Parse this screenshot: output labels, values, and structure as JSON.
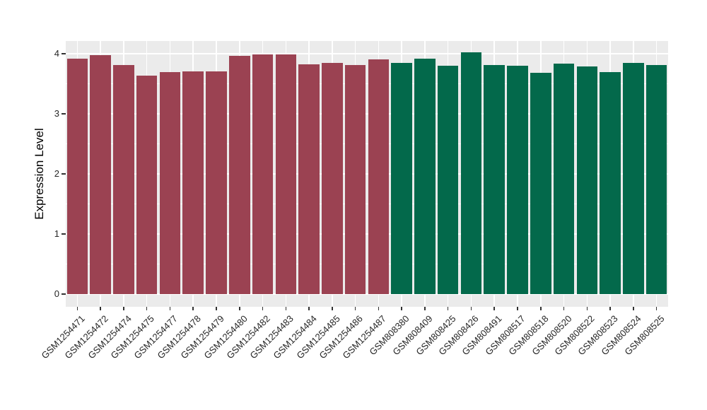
{
  "chart_data": {
    "type": "bar",
    "title": "",
    "xlabel": "",
    "ylabel": "Expression Level",
    "categories": [
      "GSM1254471",
      "GSM1254472",
      "GSM1254474",
      "GSM1254475",
      "GSM1254477",
      "GSM1254478",
      "GSM1254479",
      "GSM1254480",
      "GSM1254482",
      "GSM1254483",
      "GSM1254484",
      "GSM1254485",
      "GSM1254486",
      "GSM1254487",
      "GSM808380",
      "GSM808409",
      "GSM808425",
      "GSM808426",
      "GSM808491",
      "GSM808517",
      "GSM808518",
      "GSM808520",
      "GSM808522",
      "GSM808523",
      "GSM808524",
      "GSM808525"
    ],
    "values": [
      3.92,
      3.98,
      3.81,
      3.64,
      3.7,
      3.71,
      3.71,
      3.96,
      3.99,
      3.99,
      3.82,
      3.85,
      3.81,
      3.91,
      3.85,
      3.92,
      3.8,
      4.02,
      3.81,
      3.8,
      3.68,
      3.84,
      3.79,
      3.69,
      3.85,
      3.81
    ],
    "bar_groups": [
      0,
      0,
      0,
      0,
      0,
      0,
      0,
      0,
      0,
      0,
      0,
      0,
      0,
      0,
      1,
      1,
      1,
      1,
      1,
      1,
      1,
      1,
      1,
      1,
      1,
      1
    ],
    "group_colors": [
      "#9B4252",
      "#03694B"
    ],
    "yticks": [
      "0",
      "1",
      "2",
      "3",
      "4"
    ],
    "ytick_values": [
      0,
      1,
      2,
      3,
      4
    ],
    "minor_tick_values": [
      0.5,
      1.5,
      2.5,
      3.5
    ],
    "ylim": [
      0,
      4.21
    ],
    "grid": true,
    "legend": false,
    "panel_bg": "#EBEBEB",
    "grid_color": "#FFFFFF",
    "tick_color": "#333333",
    "axis_text_color": "#262626"
  }
}
